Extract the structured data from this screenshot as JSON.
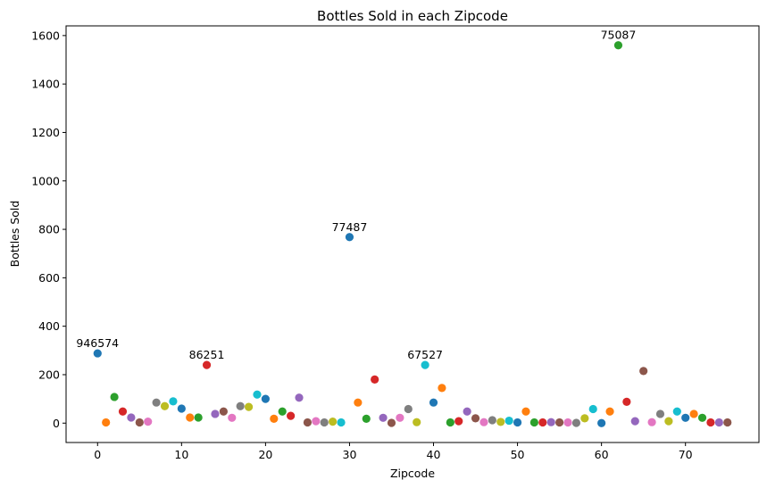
{
  "chart_data": {
    "type": "scatter",
    "title": "Bottles Sold in each Zipcode",
    "xlabel": "Zipcode",
    "ylabel": "Bottles Sold",
    "xlim": [
      -3.75,
      78.75
    ],
    "ylim": [
      -80,
      1640
    ],
    "xticks": [
      "0",
      "10",
      "20",
      "30",
      "40",
      "50",
      "60",
      "70"
    ],
    "yticks": [
      "0",
      "200",
      "400",
      "600",
      "800",
      "1000",
      "1200",
      "1400",
      "1600"
    ],
    "grid": false,
    "legend": "none",
    "palette": [
      "#1f77b4",
      "#ff7f0e",
      "#2ca02c",
      "#d62728",
      "#9467bd",
      "#8c564b",
      "#e377c2",
      "#7f7f7f",
      "#bcbd22",
      "#17becf"
    ],
    "x": [
      0,
      1,
      2,
      3,
      4,
      5,
      6,
      7,
      8,
      9,
      10,
      11,
      12,
      13,
      14,
      15,
      16,
      17,
      18,
      19,
      20,
      21,
      22,
      23,
      24,
      25,
      26,
      27,
      28,
      29,
      30,
      31,
      32,
      33,
      34,
      35,
      36,
      37,
      38,
      39,
      40,
      41,
      42,
      43,
      44,
      45,
      46,
      47,
      48,
      49,
      50,
      51,
      52,
      53,
      54,
      55,
      56,
      57,
      58,
      59,
      60,
      61,
      62,
      63,
      64,
      65,
      66,
      67,
      68,
      69,
      70,
      71,
      72,
      73,
      74,
      75
    ],
    "y": [
      288,
      3,
      108,
      48,
      23,
      3,
      6,
      85,
      70,
      90,
      60,
      23,
      23,
      240,
      38,
      48,
      22,
      70,
      67,
      118,
      100,
      18,
      48,
      30,
      105,
      3,
      8,
      3,
      6,
      3,
      768,
      85,
      18,
      180,
      22,
      1,
      22,
      58,
      4,
      240,
      85,
      145,
      3,
      8,
      48,
      20,
      4,
      12,
      5,
      10,
      3,
      48,
      3,
      3,
      4,
      3,
      3,
      1,
      20,
      58,
      0,
      48,
      1560,
      88,
      8,
      215,
      4,
      38,
      8,
      48,
      22,
      38,
      22,
      3,
      3,
      3
    ],
    "annotations": [
      {
        "x": 0,
        "y": 288,
        "text": "946574"
      },
      {
        "x": 13,
        "y": 240,
        "text": "86251"
      },
      {
        "x": 30,
        "y": 768,
        "text": "77487"
      },
      {
        "x": 39,
        "y": 240,
        "text": "67527"
      },
      {
        "x": 62,
        "y": 1560,
        "text": "75087"
      }
    ]
  }
}
